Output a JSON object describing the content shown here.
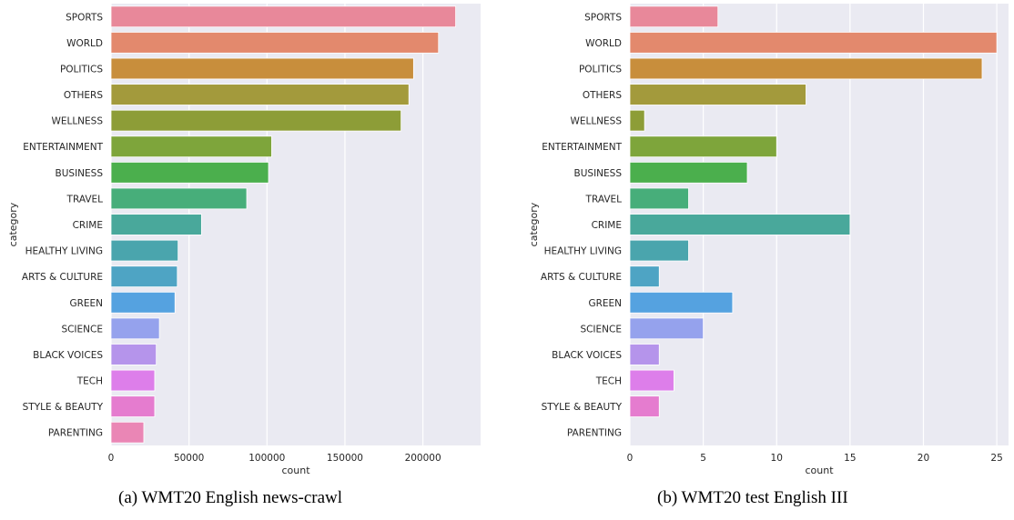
{
  "captions": [
    "(a) WMT20 English news-crawl",
    "(b) WMT20 test English III"
  ],
  "palette": [
    "#E8889A",
    "#E3896D",
    "#C88E3C",
    "#A39A3C",
    "#8D9D37",
    "#7EA53B",
    "#4BAF4D",
    "#47AE7A",
    "#49A89B",
    "#4AA5AD",
    "#4EA4C4",
    "#55A2E0",
    "#95A2ED",
    "#B594EB",
    "#DD7EEA",
    "#E57CCF",
    "#EA86B5"
  ],
  "chart_data": [
    {
      "type": "bar",
      "orientation": "horizontal",
      "title": "",
      "xlabel": "count",
      "ylabel": "category",
      "categories": [
        "SPORTS",
        "WORLD",
        "POLITICS",
        "OTHERS",
        "WELLNESS",
        "ENTERTAINMENT",
        "BUSINESS",
        "TRAVEL",
        "CRIME",
        "HEALTHY LIVING",
        "ARTS & CULTURE",
        "GREEN",
        "SCIENCE",
        "BLACK VOICES",
        "TECH",
        "STYLE & BEAUTY",
        "PARENTING"
      ],
      "values": [
        221000,
        210000,
        194000,
        191000,
        186000,
        103000,
        101000,
        87000,
        58000,
        43000,
        42500,
        41000,
        31000,
        29000,
        28000,
        28000,
        21000
      ],
      "xlim": [
        0,
        237000
      ],
      "xticks": [
        0,
        50000,
        100000,
        150000,
        200000
      ],
      "xtick_labels": [
        "0",
        "50000",
        "100000",
        "150000",
        "200000"
      ],
      "grid": true
    },
    {
      "type": "bar",
      "orientation": "horizontal",
      "title": "",
      "xlabel": "count",
      "ylabel": "category",
      "categories": [
        "SPORTS",
        "WORLD",
        "POLITICS",
        "OTHERS",
        "WELLNESS",
        "ENTERTAINMENT",
        "BUSINESS",
        "TRAVEL",
        "CRIME",
        "HEALTHY LIVING",
        "ARTS & CULTURE",
        "GREEN",
        "SCIENCE",
        "BLACK VOICES",
        "TECH",
        "STYLE & BEAUTY",
        "PARENTING"
      ],
      "values": [
        6,
        25,
        24,
        12,
        1,
        10,
        8,
        4,
        15,
        4,
        2,
        7,
        5,
        2,
        3,
        2,
        0
      ],
      "xlim": [
        0,
        25.8
      ],
      "xticks": [
        0,
        5,
        10,
        15,
        20,
        25
      ],
      "xtick_labels": [
        "0",
        "5",
        "10",
        "15",
        "20",
        "25"
      ],
      "grid": true
    }
  ]
}
